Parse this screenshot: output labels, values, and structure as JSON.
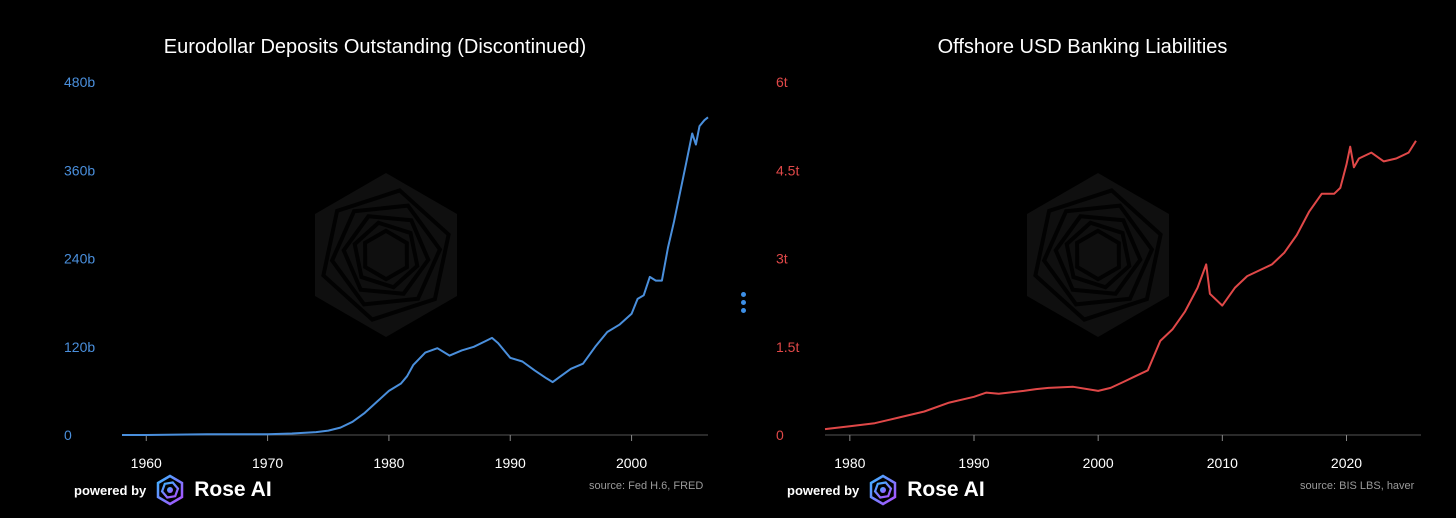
{
  "colors": {
    "background": "#000000",
    "left_series": "#4a8fdc",
    "right_series": "#e04848",
    "axis_line": "#555555",
    "tick_text": "#ffffff",
    "source_text": "#9a9a9a",
    "menu_dots": "#3d8fe6"
  },
  "branding": {
    "powered_by": "powered by",
    "brand_name": "Rose AI",
    "logo_icon": "rose-ai-logo-icon"
  },
  "menu": {
    "icon": "vertical-dots-icon"
  },
  "chart_data": [
    {
      "type": "line",
      "title": "Eurodollar Deposits Outstanding (Discontinued)",
      "source": "source: Fed H.6, FRED",
      "xlabel": "",
      "ylabel": "",
      "xlim": [
        1958.0,
        2006.3
      ],
      "ylim": [
        0,
        480
      ],
      "y_unit": "billions USD",
      "y_ticks": [
        0,
        120,
        240,
        360,
        480
      ],
      "y_tick_labels": [
        "0",
        "120b",
        "240b",
        "360b",
        "480b"
      ],
      "x_ticks": [
        1960,
        1970,
        1980,
        1990,
        2000
      ],
      "x_tick_labels": [
        "1960",
        "1970",
        "1980",
        "1990",
        "2000"
      ],
      "series": [
        {
          "name": "Eurodollar Deposits",
          "x": [
            1958.0,
            1960,
            1965,
            1970,
            1972,
            1974,
            1975,
            1976,
            1977,
            1978,
            1979,
            1980,
            1981,
            1981.5,
            1982,
            1983,
            1984,
            1985,
            1986,
            1987,
            1988,
            1988.5,
            1989,
            1990,
            1991,
            1992,
            1993,
            1993.5,
            1994,
            1995,
            1996,
            1997,
            1998,
            1999,
            2000,
            2000.5,
            2001,
            2001.5,
            2002,
            2002.5,
            2003,
            2003.5,
            2004,
            2004.5,
            2005,
            2005.3,
            2005.6,
            2006,
            2006.3
          ],
          "y": [
            0,
            0,
            1,
            1,
            2,
            4,
            6,
            10,
            18,
            30,
            45,
            60,
            70,
            80,
            95,
            112,
            118,
            108,
            115,
            120,
            128,
            132,
            125,
            105,
            100,
            88,
            77,
            72,
            78,
            90,
            97,
            120,
            140,
            150,
            165,
            185,
            190,
            215,
            210,
            210,
            255,
            290,
            330,
            370,
            410,
            395,
            420,
            428,
            432
          ]
        }
      ]
    },
    {
      "type": "line",
      "title": "Offshore USD Banking Liabilities",
      "source": "source: BIS LBS, haver",
      "xlabel": "",
      "ylabel": "",
      "xlim": [
        1978.0,
        2026.0
      ],
      "ylim": [
        0,
        6
      ],
      "y_unit": "trillions USD",
      "y_ticks": [
        0,
        1.5,
        3,
        4.5,
        6
      ],
      "y_tick_labels": [
        "0",
        "1.5t",
        "3t",
        "4.5t",
        "6t"
      ],
      "x_ticks": [
        1980,
        1990,
        2000,
        2010,
        2020
      ],
      "x_tick_labels": [
        "1980",
        "1990",
        "2000",
        "2010",
        "2020"
      ],
      "series": [
        {
          "name": "Offshore USD Liabilities",
          "x": [
            1978.0,
            1980,
            1982,
            1984,
            1986,
            1988,
            1990,
            1991,
            1992,
            1994,
            1995,
            1996,
            1998,
            2000,
            2001,
            2002,
            2003,
            2004,
            2005,
            2006,
            2007,
            2008,
            2008.7,
            2009,
            2010,
            2011,
            2012,
            2014,
            2015,
            2016,
            2017,
            2018,
            2019,
            2019.5,
            2020,
            2020.3,
            2020.6,
            2021,
            2022,
            2023,
            2024,
            2025,
            2025.6
          ],
          "y": [
            0.1,
            0.15,
            0.2,
            0.3,
            0.4,
            0.55,
            0.65,
            0.72,
            0.7,
            0.75,
            0.78,
            0.8,
            0.82,
            0.75,
            0.8,
            0.9,
            1.0,
            1.1,
            1.6,
            1.8,
            2.1,
            2.5,
            2.9,
            2.4,
            2.2,
            2.5,
            2.7,
            2.9,
            3.1,
            3.4,
            3.8,
            4.1,
            4.1,
            4.2,
            4.6,
            4.9,
            4.55,
            4.7,
            4.8,
            4.65,
            4.7,
            4.8,
            5.0
          ]
        }
      ]
    }
  ]
}
